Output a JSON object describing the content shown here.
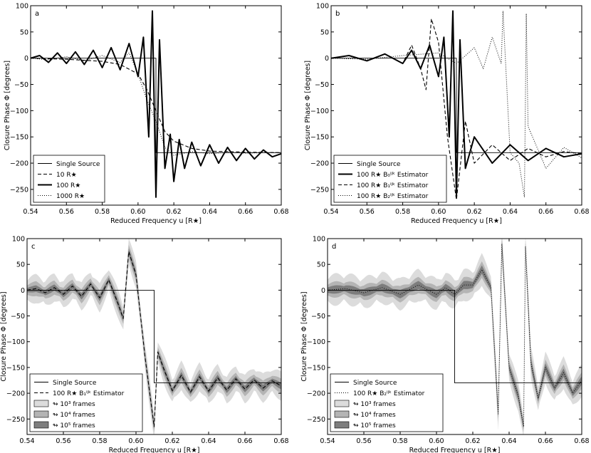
{
  "chart_data": [
    {
      "type": "line",
      "panel_label": "a",
      "xlabel": "Reduced Frequency u [R★]",
      "ylabel": "Closure Phase Φ [degrees]",
      "xlim": [
        0.54,
        0.68
      ],
      "ylim": [
        -280,
        100
      ],
      "xticks": [
        "0.54",
        "0.56",
        "0.58",
        "0.60",
        "0.62",
        "0.64",
        "0.66",
        "0.68"
      ],
      "yticks": [
        "100",
        "50",
        "0",
        "−50",
        "−100",
        "−150",
        "−200",
        "−250"
      ],
      "legend_position": "lower-left",
      "grid": false,
      "series": [
        {
          "name": "Single Source",
          "style": "solid-thin",
          "x": [
            0.54,
            0.61,
            0.61,
            0.68
          ],
          "y": [
            0,
            0,
            -180,
            -180
          ]
        },
        {
          "name": "10 R★",
          "style": "dashed",
          "x": [
            0.54,
            0.56,
            0.58,
            0.59,
            0.6,
            0.605,
            0.61,
            0.615,
            0.62,
            0.63,
            0.64,
            0.66,
            0.68
          ],
          "y": [
            0,
            -2,
            -6,
            -12,
            -30,
            -60,
            -100,
            -140,
            -158,
            -172,
            -177,
            -179,
            -180
          ]
        },
        {
          "name": "100 R★",
          "style": "solid-thick",
          "x": [
            0.54,
            0.545,
            0.55,
            0.555,
            0.56,
            0.565,
            0.57,
            0.575,
            0.58,
            0.585,
            0.59,
            0.595,
            0.6,
            0.603,
            0.606,
            0.608,
            0.61,
            0.612,
            0.615,
            0.618,
            0.62,
            0.623,
            0.626,
            0.63,
            0.635,
            0.64,
            0.645,
            0.65,
            0.655,
            0.66,
            0.665,
            0.67,
            0.675,
            0.68
          ],
          "y": [
            0,
            5,
            -8,
            10,
            -10,
            12,
            -12,
            15,
            -18,
            20,
            -22,
            28,
            -35,
            40,
            -150,
            90,
            -265,
            35,
            -210,
            -145,
            -235,
            -155,
            -210,
            -160,
            -205,
            -165,
            -200,
            -170,
            -195,
            -172,
            -192,
            -175,
            -188,
            -182
          ]
        },
        {
          "name": "1000 R★",
          "style": "dotted",
          "x": [
            0.54,
            0.55,
            0.56,
            0.57,
            0.58,
            0.59,
            0.595,
            0.6,
            0.605,
            0.61,
            0.615,
            0.62,
            0.63,
            0.64,
            0.65,
            0.66,
            0.67,
            0.68
          ],
          "y": [
            0,
            -3,
            3,
            -5,
            5,
            -8,
            10,
            -30,
            -80,
            -120,
            -170,
            -185,
            -178,
            -182,
            -179,
            -181,
            -180,
            -180
          ]
        }
      ]
    },
    {
      "type": "line",
      "panel_label": "b",
      "xlabel": "Reduced Frequency u [R★]",
      "ylabel": "Closure Phase Φ [degrees]",
      "xlim": [
        0.54,
        0.68
      ],
      "ylim": [
        -280,
        100
      ],
      "xticks": [
        "0.54",
        "0.56",
        "0.58",
        "0.60",
        "0.62",
        "0.64",
        "0.66",
        "0.68"
      ],
      "yticks": [
        "100",
        "50",
        "0",
        "−50",
        "−100",
        "−150",
        "−200",
        "−250"
      ],
      "legend_position": "lower-left",
      "grid": false,
      "series": [
        {
          "name": "Single Source",
          "style": "solid-thin",
          "x": [
            0.54,
            0.61,
            0.61,
            0.68
          ],
          "y": [
            0,
            0,
            -180,
            -180
          ]
        },
        {
          "name": "100 R★ B₀ⁱʲᵏ Estimator",
          "style": "solid-thick",
          "x": [
            0.54,
            0.55,
            0.56,
            0.57,
            0.58,
            0.585,
            0.59,
            0.595,
            0.6,
            0.603,
            0.606,
            0.608,
            0.61,
            0.612,
            0.615,
            0.62,
            0.63,
            0.64,
            0.65,
            0.66,
            0.67,
            0.68
          ],
          "y": [
            0,
            5,
            -5,
            8,
            -10,
            15,
            -20,
            25,
            -35,
            40,
            -150,
            90,
            -265,
            35,
            -210,
            -150,
            -200,
            -165,
            -195,
            -172,
            -188,
            -182
          ]
        },
        {
          "name": "100 R★ B₁ⁱʲᵏ Estimator",
          "style": "dashed",
          "x": [
            0.54,
            0.55,
            0.56,
            0.57,
            0.58,
            0.585,
            0.59,
            0.593,
            0.596,
            0.6,
            0.605,
            0.61,
            0.615,
            0.62,
            0.63,
            0.64,
            0.65,
            0.66,
            0.67,
            0.68
          ],
          "y": [
            0,
            5,
            -5,
            8,
            -10,
            25,
            -20,
            -60,
            75,
            30,
            -150,
            -270,
            -120,
            -200,
            -165,
            -195,
            -172,
            -188,
            -178,
            -182
          ]
        },
        {
          "name": "100 R★ B₂ⁱʲᵏ Estimator",
          "style": "dotted",
          "x": [
            0.54,
            0.56,
            0.58,
            0.6,
            0.61,
            0.615,
            0.62,
            0.625,
            0.63,
            0.635,
            0.636,
            0.64,
            0.645,
            0.648,
            0.649,
            0.65,
            0.66,
            0.67,
            0.68
          ],
          "y": [
            0,
            -2,
            5,
            10,
            -10,
            5,
            20,
            -20,
            40,
            -10,
            90,
            -180,
            -200,
            -265,
            85,
            -130,
            -210,
            -170,
            -190
          ]
        }
      ]
    },
    {
      "type": "area",
      "panel_label": "c",
      "xlabel": "Reduced Frequency u [R★]",
      "ylabel": "Closure Phase Φ [degrees]",
      "xlim": [
        0.54,
        0.68
      ],
      "ylim": [
        -280,
        100
      ],
      "xticks": [
        "0.54",
        "0.56",
        "0.58",
        "0.60",
        "0.62",
        "0.64",
        "0.66",
        "0.68"
      ],
      "yticks": [
        "100",
        "50",
        "0",
        "−50",
        "−100",
        "−150",
        "−200",
        "−250"
      ],
      "legend_position": "lower-left",
      "grid": false,
      "series": [
        {
          "name": "Single Source",
          "style": "solid-thin",
          "x": [
            0.54,
            0.61,
            0.61,
            0.68
          ],
          "y": [
            0,
            0,
            -180,
            -180
          ]
        },
        {
          "name": "100 R★ B₁ⁱʲᵏ Estimator",
          "style": "dashed",
          "x": [
            0.54,
            0.545,
            0.55,
            0.555,
            0.56,
            0.565,
            0.57,
            0.575,
            0.58,
            0.585,
            0.59,
            0.593,
            0.596,
            0.6,
            0.605,
            0.61,
            0.612,
            0.615,
            0.62,
            0.625,
            0.63,
            0.635,
            0.64,
            0.645,
            0.65,
            0.655,
            0.66,
            0.665,
            0.67,
            0.675,
            0.68
          ],
          "y": [
            0,
            3,
            -5,
            5,
            -8,
            8,
            -12,
            12,
            -15,
            20,
            -25,
            -55,
            75,
            30,
            -130,
            -265,
            -120,
            -150,
            -195,
            -165,
            -198,
            -168,
            -196,
            -170,
            -194,
            -172,
            -192,
            -174,
            -190,
            -176,
            -186
          ]
        },
        {
          "name": "↬ 10³ frames",
          "style": "band",
          "shade": "#dcdcdc",
          "half_width": 18
        },
        {
          "name": "↬ 10⁴ frames",
          "style": "band",
          "shade": "#b4b4b4",
          "half_width": 9
        },
        {
          "name": "↬ 10⁵ frames",
          "style": "band",
          "shade": "#7d7d7d",
          "half_width": 4
        }
      ]
    },
    {
      "type": "area",
      "panel_label": "d",
      "xlabel": "Reduced Frequency u [R★]",
      "ylabel": "Closure Phase Φ [degrees]",
      "xlim": [
        0.54,
        0.68
      ],
      "ylim": [
        -280,
        100
      ],
      "xticks": [
        "0.54",
        "0.56",
        "0.58",
        "0.60",
        "0.62",
        "0.64",
        "0.66",
        "0.68"
      ],
      "yticks": [
        "100",
        "50",
        "0",
        "−50",
        "−100",
        "−150",
        "−200",
        "−250"
      ],
      "legend_position": "lower-left",
      "grid": false,
      "series": [
        {
          "name": "Single Source",
          "style": "solid-thin",
          "x": [
            0.54,
            0.61,
            0.61,
            0.68
          ],
          "y": [
            0,
            0,
            -180,
            -180
          ]
        },
        {
          "name": "100 R★ B₂ⁱʲᵏ Estimator",
          "style": "dotted",
          "x": [
            0.54,
            0.55,
            0.56,
            0.57,
            0.58,
            0.59,
            0.6,
            0.605,
            0.61,
            0.615,
            0.62,
            0.625,
            0.63,
            0.634,
            0.636,
            0.64,
            0.645,
            0.648,
            0.649,
            0.652,
            0.656,
            0.66,
            0.665,
            0.67,
            0.675,
            0.68
          ],
          "y": [
            0,
            3,
            -5,
            5,
            -8,
            10,
            -8,
            5,
            -8,
            10,
            10,
            40,
            5,
            -240,
            90,
            -150,
            -205,
            -265,
            85,
            -140,
            -210,
            -150,
            -190,
            -160,
            -200,
            -175
          ]
        },
        {
          "name": "↬ 10³ frames",
          "style": "band",
          "shade": "#dcdcdc",
          "half_width": 20
        },
        {
          "name": "↬ 10⁴ frames",
          "style": "band",
          "shade": "#b4b4b4",
          "half_width": 10
        },
        {
          "name": "↬ 10⁵ frames",
          "style": "band",
          "shade": "#7d7d7d",
          "half_width": 5
        }
      ]
    }
  ]
}
